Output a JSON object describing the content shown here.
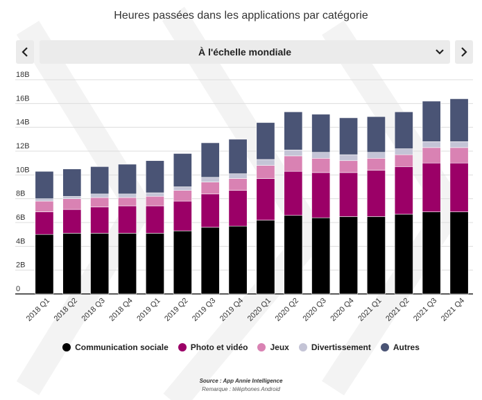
{
  "title": "Heures passées dans les applications par catégorie",
  "selector": {
    "label": "À l'échelle mondiale"
  },
  "icons": {
    "prev": "chevron-left-icon",
    "next": "chevron-right-icon",
    "dropdown": "chevron-down-icon"
  },
  "colors": {
    "control_bg": "#ebebeb"
  },
  "chart_data": {
    "type": "bar",
    "stacked": true,
    "categories": [
      "2018 Q1",
      "2018 Q2",
      "2018 Q3",
      "2018 Q4",
      "2019 Q1",
      "2019 Q2",
      "2019 Q3",
      "2019 Q4",
      "2020 Q1",
      "2020 Q2",
      "2020 Q3",
      "2020 Q4",
      "2021 Q1",
      "2021 Q2",
      "2021 Q3",
      "2021 Q4"
    ],
    "ylim": [
      0,
      18
    ],
    "yticks": [
      0,
      2,
      4,
      6,
      8,
      10,
      12,
      14,
      16,
      18
    ],
    "ytick_labels": [
      "0",
      "2B",
      "4B",
      "6B",
      "8B",
      "10B",
      "12B",
      "14B",
      "16B",
      "18B"
    ],
    "grid": true,
    "legend": "bottom",
    "series": [
      {
        "name": "Communication sociale",
        "color": "#000000",
        "values": [
          5.0,
          5.1,
          5.1,
          5.1,
          5.1,
          5.3,
          5.6,
          5.7,
          6.2,
          6.6,
          6.4,
          6.5,
          6.5,
          6.7,
          6.9,
          6.9
        ]
      },
      {
        "name": "Photo et vidéo",
        "color": "#9b0067",
        "values": [
          1.9,
          2.0,
          2.2,
          2.3,
          2.3,
          2.5,
          2.8,
          3.0,
          3.5,
          3.7,
          3.8,
          3.7,
          3.9,
          4.0,
          4.1,
          4.1
        ]
      },
      {
        "name": "Jeux",
        "color": "#d982b3",
        "values": [
          0.9,
          0.9,
          0.8,
          0.7,
          0.8,
          0.9,
          1.0,
          1.0,
          1.1,
          1.3,
          1.2,
          1.0,
          1.0,
          1.0,
          1.3,
          1.3
        ]
      },
      {
        "name": "Divertissement",
        "color": "#c4c4d6",
        "values": [
          0.2,
          0.2,
          0.3,
          0.3,
          0.3,
          0.3,
          0.4,
          0.4,
          0.5,
          0.5,
          0.5,
          0.5,
          0.5,
          0.5,
          0.5,
          0.5
        ]
      },
      {
        "name": "Autres",
        "color": "#4a5475",
        "values": [
          2.3,
          2.3,
          2.3,
          2.5,
          2.7,
          2.8,
          2.9,
          2.9,
          3.1,
          3.2,
          3.2,
          3.1,
          3.0,
          3.1,
          3.4,
          3.6
        ]
      }
    ]
  },
  "footer": {
    "source": "Source : App Annie Intelligence",
    "note": "Remarque : téléphones Android"
  }
}
